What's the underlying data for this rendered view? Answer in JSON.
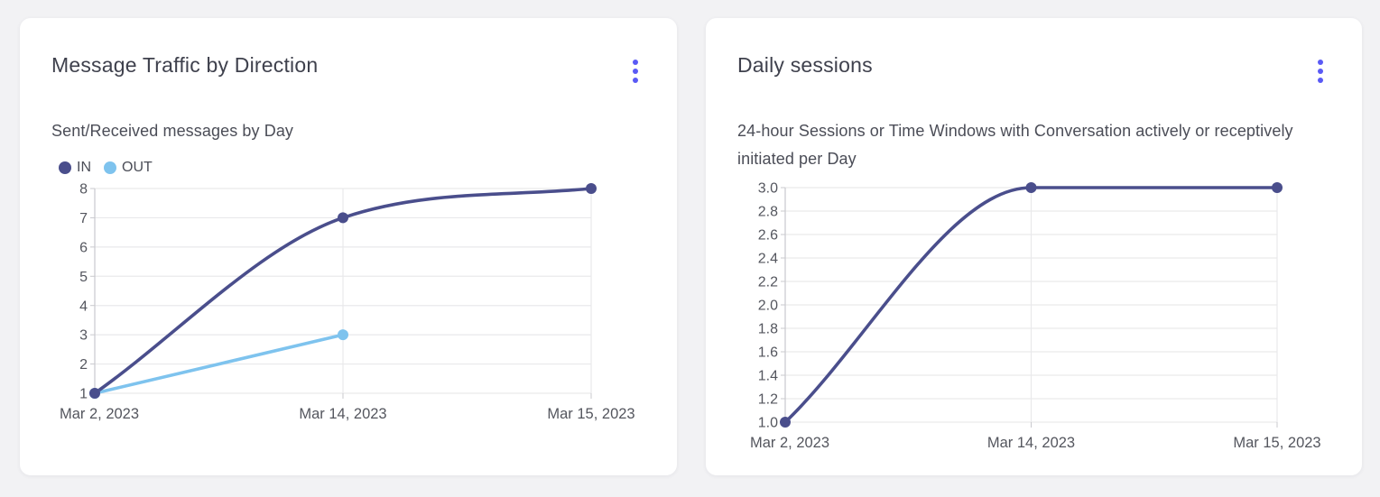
{
  "theme": {
    "accent": "#5a5af5",
    "page_bg": "#f2f2f4",
    "card_bg": "#ffffff",
    "title_color": "#3f414d",
    "text_color": "#4b4d57",
    "axis_label_color": "#54565e",
    "grid_color": "#e9e9eb",
    "axis_color": "#c9c9ce"
  },
  "cards": [
    {
      "title": "Message Traffic by Direction",
      "subtitle": "Sent/Received messages by Day",
      "chart_data": {
        "type": "line",
        "categories": [
          "Mar 2, 2023",
          "Mar 14, 2023",
          "Mar 15, 2023"
        ],
        "series": [
          {
            "name": "IN",
            "values": [
              1,
              7,
              8
            ],
            "color": "#4a4e8c"
          },
          {
            "name": "OUT",
            "values": [
              1,
              3,
              null
            ],
            "color": "#7ec3ee"
          }
        ],
        "ymin": 1,
        "ymax": 8,
        "yticks": [
          "8",
          "7",
          "6",
          "5",
          "4",
          "3",
          "2",
          "1"
        ],
        "xlabel": "",
        "ylabel": "",
        "grid": true,
        "smooth": true,
        "legend_position": "top-left"
      }
    },
    {
      "title": "Daily sessions",
      "subtitle": "24-hour Sessions or Time Windows with Conversation actively or receptively initiated per Day",
      "chart_data": {
        "type": "line",
        "categories": [
          "Mar 2, 2023",
          "Mar 14, 2023",
          "Mar 15, 2023"
        ],
        "series": [
          {
            "values": [
              1,
              3,
              3
            ],
            "color": "#4a4e8c"
          }
        ],
        "ymin": 1.0,
        "ymax": 3.0,
        "yticks": [
          "3.0",
          "2.8",
          "2.6",
          "2.4",
          "2.2",
          "2.0",
          "1.8",
          "1.6",
          "1.4",
          "1.2",
          "1.0"
        ],
        "xlabel": "",
        "ylabel": "",
        "grid": true,
        "smooth": true,
        "legend_position": "none"
      }
    }
  ]
}
